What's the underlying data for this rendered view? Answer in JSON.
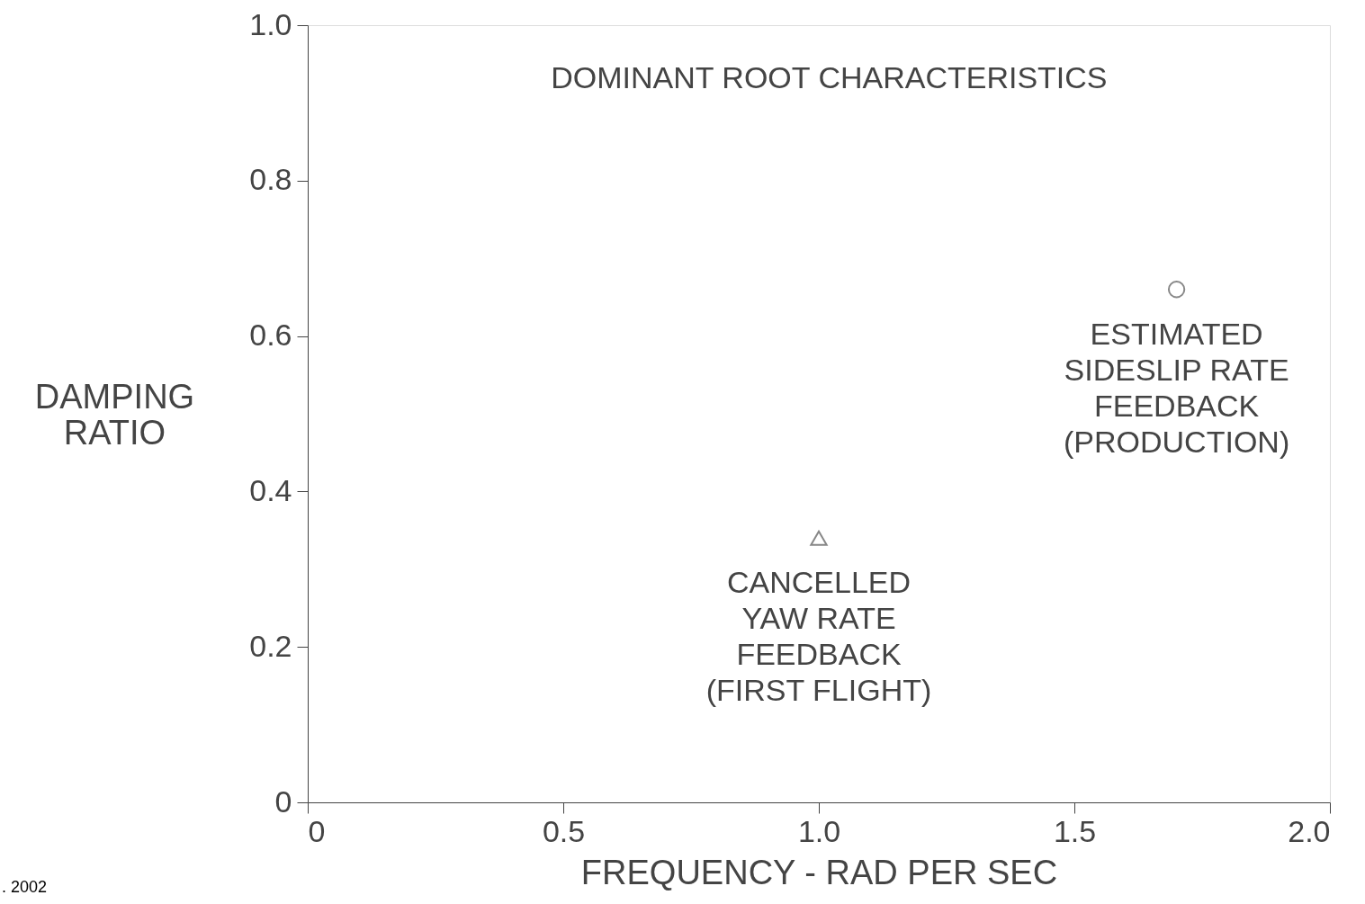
{
  "chart_data": {
    "type": "scatter",
    "title": "DOMINANT ROOT CHARACTERISTICS",
    "xlabel": "FREQUENCY - RAD PER SEC",
    "ylabel": "DAMPING RATIO",
    "series": [
      {
        "x": [
          1.0
        ],
        "values": [
          0.34
        ],
        "color": "#555555",
        "marker": "triangle"
      },
      {
        "x": [
          1.7
        ],
        "values": [
          0.66
        ],
        "color": "#555555",
        "marker": "circle"
      }
    ],
    "xlim": [
      0,
      2.0
    ],
    "ylim": [
      0,
      1.0
    ],
    "xticks": [
      0,
      0.5,
      {
        "value": 1,
        "label": "1.0"
      },
      1.5,
      {
        "value": 2,
        "label": "2.0"
      }
    ],
    "yticks": [
      0,
      0.2,
      0.4,
      0.6,
      0.8,
      {
        "value": 1,
        "label": "1.0"
      }
    ],
    "grid": false,
    "annotations": [
      {
        "text": "CANCELLED\nYAW RATE\nFEEDBACK\n(FIRST FLIGHT)",
        "x": 1.0,
        "y": 0.34
      },
      {
        "text": "ESTIMATED\nSIDESLIP RATE\nFEEDBACK\n(PRODUCTION)",
        "x": 1.7,
        "y": 0.66
      },
      ". 2002"
    ]
  }
}
